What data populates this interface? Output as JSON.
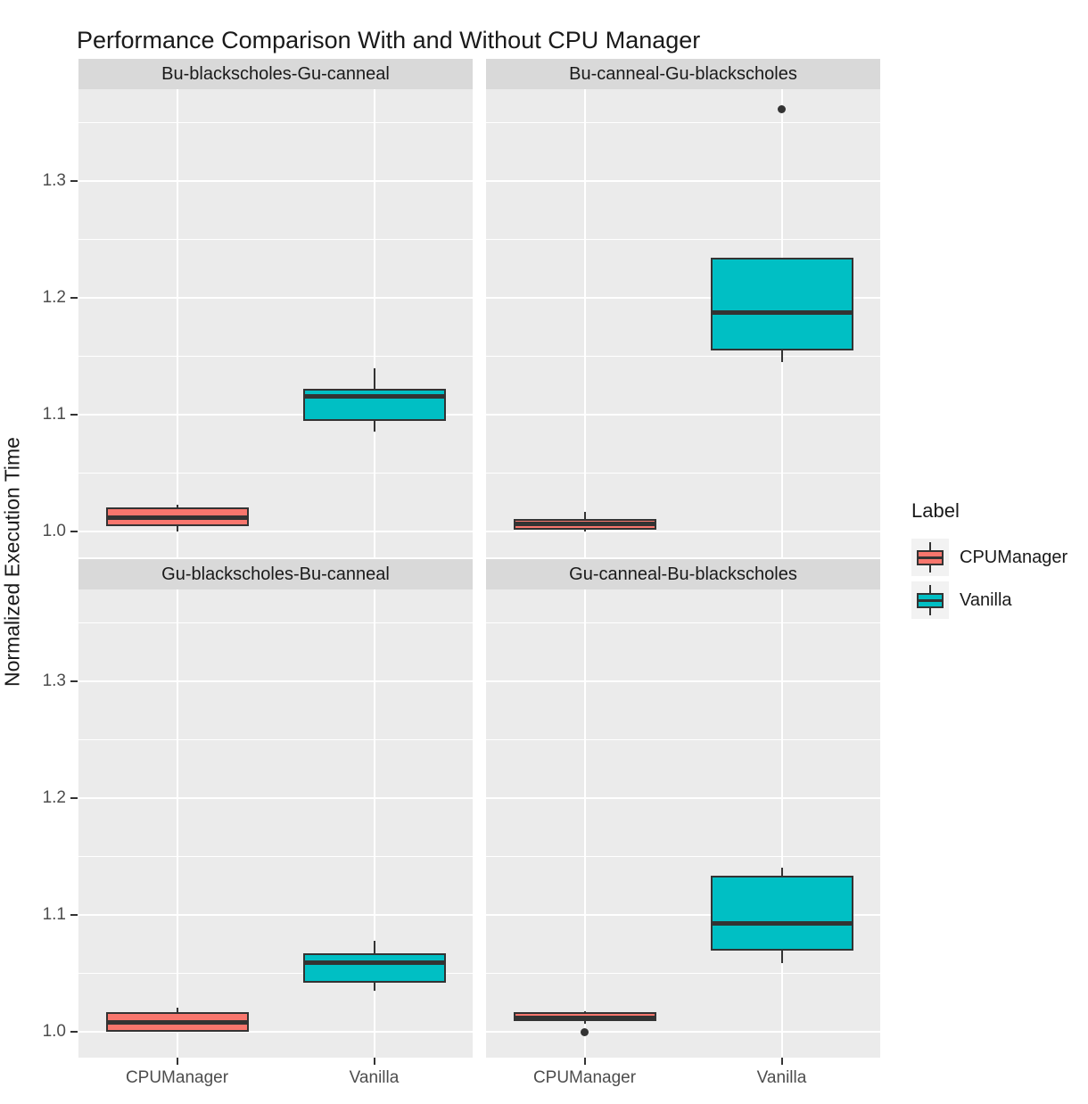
{
  "chart_data": {
    "type": "boxplot",
    "title": "Performance Comparison With and Without CPU Manager",
    "ylabel": "Normalized Execution Time",
    "xlabel": "",
    "legend_title": "Label",
    "legend_position": "right",
    "grid": true,
    "categories": [
      "CPUManager",
      "Vanilla"
    ],
    "series": [
      {
        "name": "CPUManager",
        "color": "#F8766D"
      },
      {
        "name": "Vanilla",
        "color": "#00BFC4"
      }
    ],
    "y_ticks": [
      1.0,
      1.1,
      1.2,
      1.3
    ],
    "y_tick_labels": [
      "1.0",
      "1.1",
      "1.2",
      "1.3"
    ],
    "y_minor_ticks": [
      1.05,
      1.15,
      1.25,
      1.35
    ],
    "ylim": [
      0.978,
      1.379
    ],
    "facets": [
      {
        "label": "Bu-blackscholes-Gu-canneal",
        "boxes": [
          {
            "group": "CPUManager",
            "min": 1.0,
            "q1": 1.005,
            "median": 1.012,
            "q3": 1.021,
            "max": 1.023,
            "outliers": []
          },
          {
            "group": "Vanilla",
            "min": 1.086,
            "q1": 1.095,
            "median": 1.116,
            "q3": 1.122,
            "max": 1.14,
            "outliers": []
          }
        ]
      },
      {
        "label": "Bu-canneal-Gu-blackscholes",
        "boxes": [
          {
            "group": "CPUManager",
            "min": 1.0,
            "q1": 1.002,
            "median": 1.007,
            "q3": 1.011,
            "max": 1.017,
            "outliers": []
          },
          {
            "group": "Vanilla",
            "min": 1.145,
            "q1": 1.155,
            "median": 1.188,
            "q3": 1.235,
            "max": 1.235,
            "outliers": [
              1.362
            ]
          }
        ]
      },
      {
        "label": "Gu-blackscholes-Bu-canneal",
        "boxes": [
          {
            "group": "CPUManager",
            "min": 1.0,
            "q1": 1.0,
            "median": 1.008,
            "q3": 1.017,
            "max": 1.021,
            "outliers": []
          },
          {
            "group": "Vanilla",
            "min": 1.035,
            "q1": 1.042,
            "median": 1.059,
            "q3": 1.067,
            "max": 1.078,
            "outliers": []
          }
        ]
      },
      {
        "label": "Gu-canneal-Bu-blackscholes",
        "boxes": [
          {
            "group": "CPUManager",
            "min": 1.007,
            "q1": 1.009,
            "median": 1.012,
            "q3": 1.017,
            "max": 1.018,
            "outliers": [
              1.0
            ]
          },
          {
            "group": "Vanilla",
            "min": 1.059,
            "q1": 1.07,
            "median": 1.093,
            "q3": 1.134,
            "max": 1.141,
            "outliers": []
          }
        ]
      }
    ],
    "colors": {
      "panel_bg": "#EBEBEB",
      "strip_bg": "#D9D9D9",
      "grid": "#FFFFFF",
      "box_border": "#333333",
      "outlier": "#333333",
      "tick_text": "#4D4D4D",
      "text": "#1A1A1A",
      "legend_key_bg": "#F2F2F2"
    }
  }
}
